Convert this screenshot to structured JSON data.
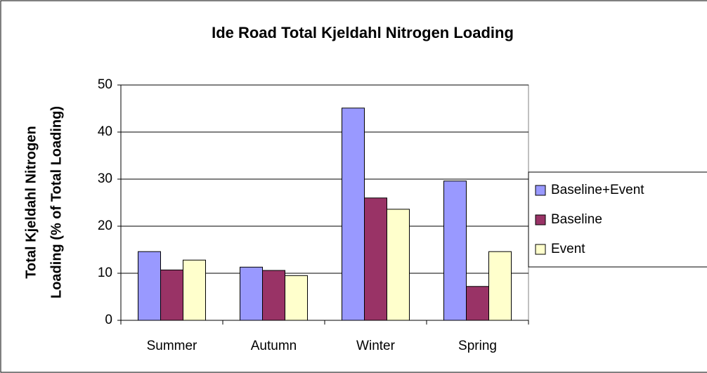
{
  "chart_data": {
    "type": "bar",
    "title": "Ide Road Total Kjeldahl Nitrogen Loading",
    "ylabel": [
      "Total Kjeldahl Nitrogen",
      "Loading (% of Total Loading)"
    ],
    "categories": [
      "Summer",
      "Autumn",
      "Winter",
      "Spring"
    ],
    "series": [
      {
        "name": "Baseline+Event",
        "color": "#9999ff",
        "values": [
          14.6,
          11.3,
          45.1,
          29.6
        ]
      },
      {
        "name": "Baseline",
        "color": "#993366",
        "values": [
          10.7,
          10.6,
          26.0,
          7.2
        ]
      },
      {
        "name": "Event",
        "color": "#ffffcc",
        "values": [
          12.8,
          9.5,
          23.6,
          14.6
        ]
      }
    ],
    "ylim": [
      0,
      50
    ],
    "yticks": [
      0,
      10,
      20,
      30,
      40,
      50
    ],
    "grid": true,
    "legend": "right"
  }
}
